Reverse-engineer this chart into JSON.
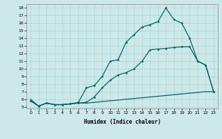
{
  "xlabel": "Humidex (Indice chaleur)",
  "ylabel": "",
  "background_color": "#cce8e8",
  "grid_color": "#aad4d4",
  "line_color": "#006666",
  "x_ticks": [
    0,
    1,
    2,
    3,
    4,
    5,
    6,
    7,
    8,
    9,
    10,
    11,
    12,
    13,
    14,
    15,
    16,
    17,
    18,
    19,
    20,
    21,
    22,
    23
  ],
  "y_ticks": [
    5,
    6,
    7,
    8,
    9,
    10,
    11,
    12,
    13,
    14,
    15,
    16,
    17,
    18
  ],
  "xlim": [
    -0.5,
    23.5
  ],
  "ylim": [
    4.8,
    18.5
  ],
  "series1_x": [
    0,
    1,
    2,
    3,
    4,
    5,
    6,
    7,
    8,
    9,
    10,
    11,
    12,
    13,
    14,
    15,
    16,
    17,
    18,
    19,
    20,
    21,
    22,
    23
  ],
  "series1_y": [
    6.0,
    5.1,
    5.5,
    5.3,
    5.3,
    5.4,
    5.5,
    5.5,
    5.6,
    5.7,
    5.8,
    5.9,
    6.0,
    6.1,
    6.2,
    6.3,
    6.4,
    6.5,
    6.6,
    6.7,
    6.8,
    6.9,
    7.0,
    7.0
  ],
  "series2_x": [
    0,
    1,
    2,
    3,
    4,
    5,
    6,
    7,
    8,
    9,
    10,
    11,
    12,
    13,
    14,
    15,
    16,
    17,
    18,
    19,
    20,
    21,
    22,
    23
  ],
  "series2_y": [
    5.8,
    5.1,
    5.5,
    5.3,
    5.3,
    5.4,
    5.5,
    5.6,
    6.3,
    7.5,
    8.5,
    9.2,
    9.5,
    10.0,
    11.0,
    12.5,
    12.6,
    12.7,
    12.8,
    12.9,
    12.9,
    11.0,
    10.5,
    7.0
  ],
  "series3_x": [
    0,
    1,
    2,
    3,
    4,
    5,
    6,
    7,
    8,
    9,
    10,
    11,
    12,
    13,
    14,
    15,
    16,
    17,
    18,
    19,
    20,
    21,
    22,
    23
  ],
  "series3_y": [
    5.8,
    5.1,
    5.5,
    5.3,
    5.3,
    5.4,
    5.6,
    7.5,
    7.8,
    9.0,
    11.0,
    11.2,
    13.5,
    14.5,
    15.5,
    15.8,
    16.2,
    18.0,
    16.5,
    16.0,
    14.0,
    11.0,
    10.5,
    7.0
  ]
}
